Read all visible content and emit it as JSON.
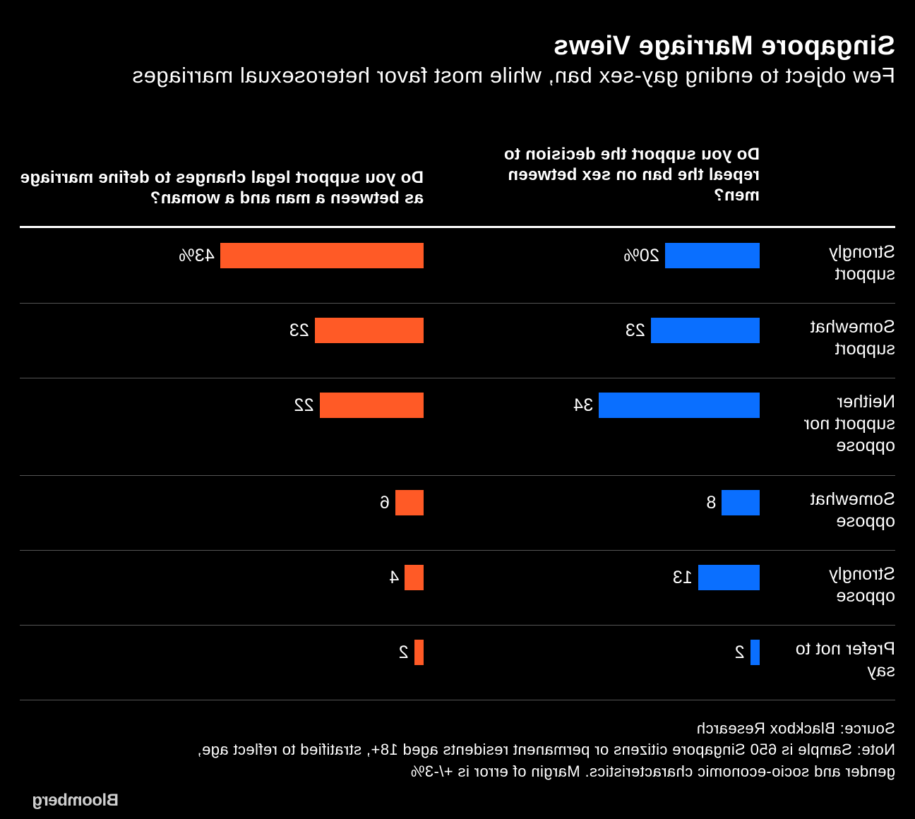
{
  "header": {
    "title": "Singapore Marriage Views",
    "subtitle": "Few object to ending gay-sex ban, while most favor heterosexual marriages"
  },
  "columns": {
    "repeal_header": "Do you support the decision to repeal the ban on sex between men?",
    "marriage_header": "Do you support legal changes to define marriage as between a man and a woman?"
  },
  "chart_data": {
    "type": "bar",
    "orientation": "horizontal",
    "title": "Singapore Marriage Views",
    "subtitle": "Few object to ending gay-sex ban, while most favor heterosexual marriages",
    "categories": [
      "Strongly support",
      "Somewhat support",
      "Neither support nor oppose",
      "Somewhat oppose",
      "Strongly oppose",
      "Prefer not to say"
    ],
    "series": [
      {
        "name": "Do you support the decision to repeal the ban on sex between men?",
        "color": "#0a6fff",
        "values": [
          20,
          23,
          34,
          8,
          13,
          2
        ],
        "labels": [
          "20%",
          "23",
          "34",
          "8",
          "13",
          "2"
        ]
      },
      {
        "name": "Do you support legal changes to define marriage as between a man and a woman?",
        "color": "#ff5a26",
        "values": [
          43,
          23,
          22,
          6,
          4,
          2
        ],
        "labels": [
          "43%",
          "23",
          "22",
          "6",
          "4",
          "2"
        ]
      }
    ],
    "unit": "%",
    "grid": false,
    "legend": "column headers",
    "mirrored": true
  },
  "footer": {
    "source": "Source: Blackbox Research",
    "note": "Note: Sample is 650 Singapore citizens or permanent residents aged 18+, stratified to reflect age, gender and socio-economic characteristics. Margin of error is +/-3%",
    "logo": "Bloomberg"
  },
  "colors": {
    "background": "#000000",
    "repeal": "#0a6fff",
    "marriage": "#ff5a26"
  }
}
